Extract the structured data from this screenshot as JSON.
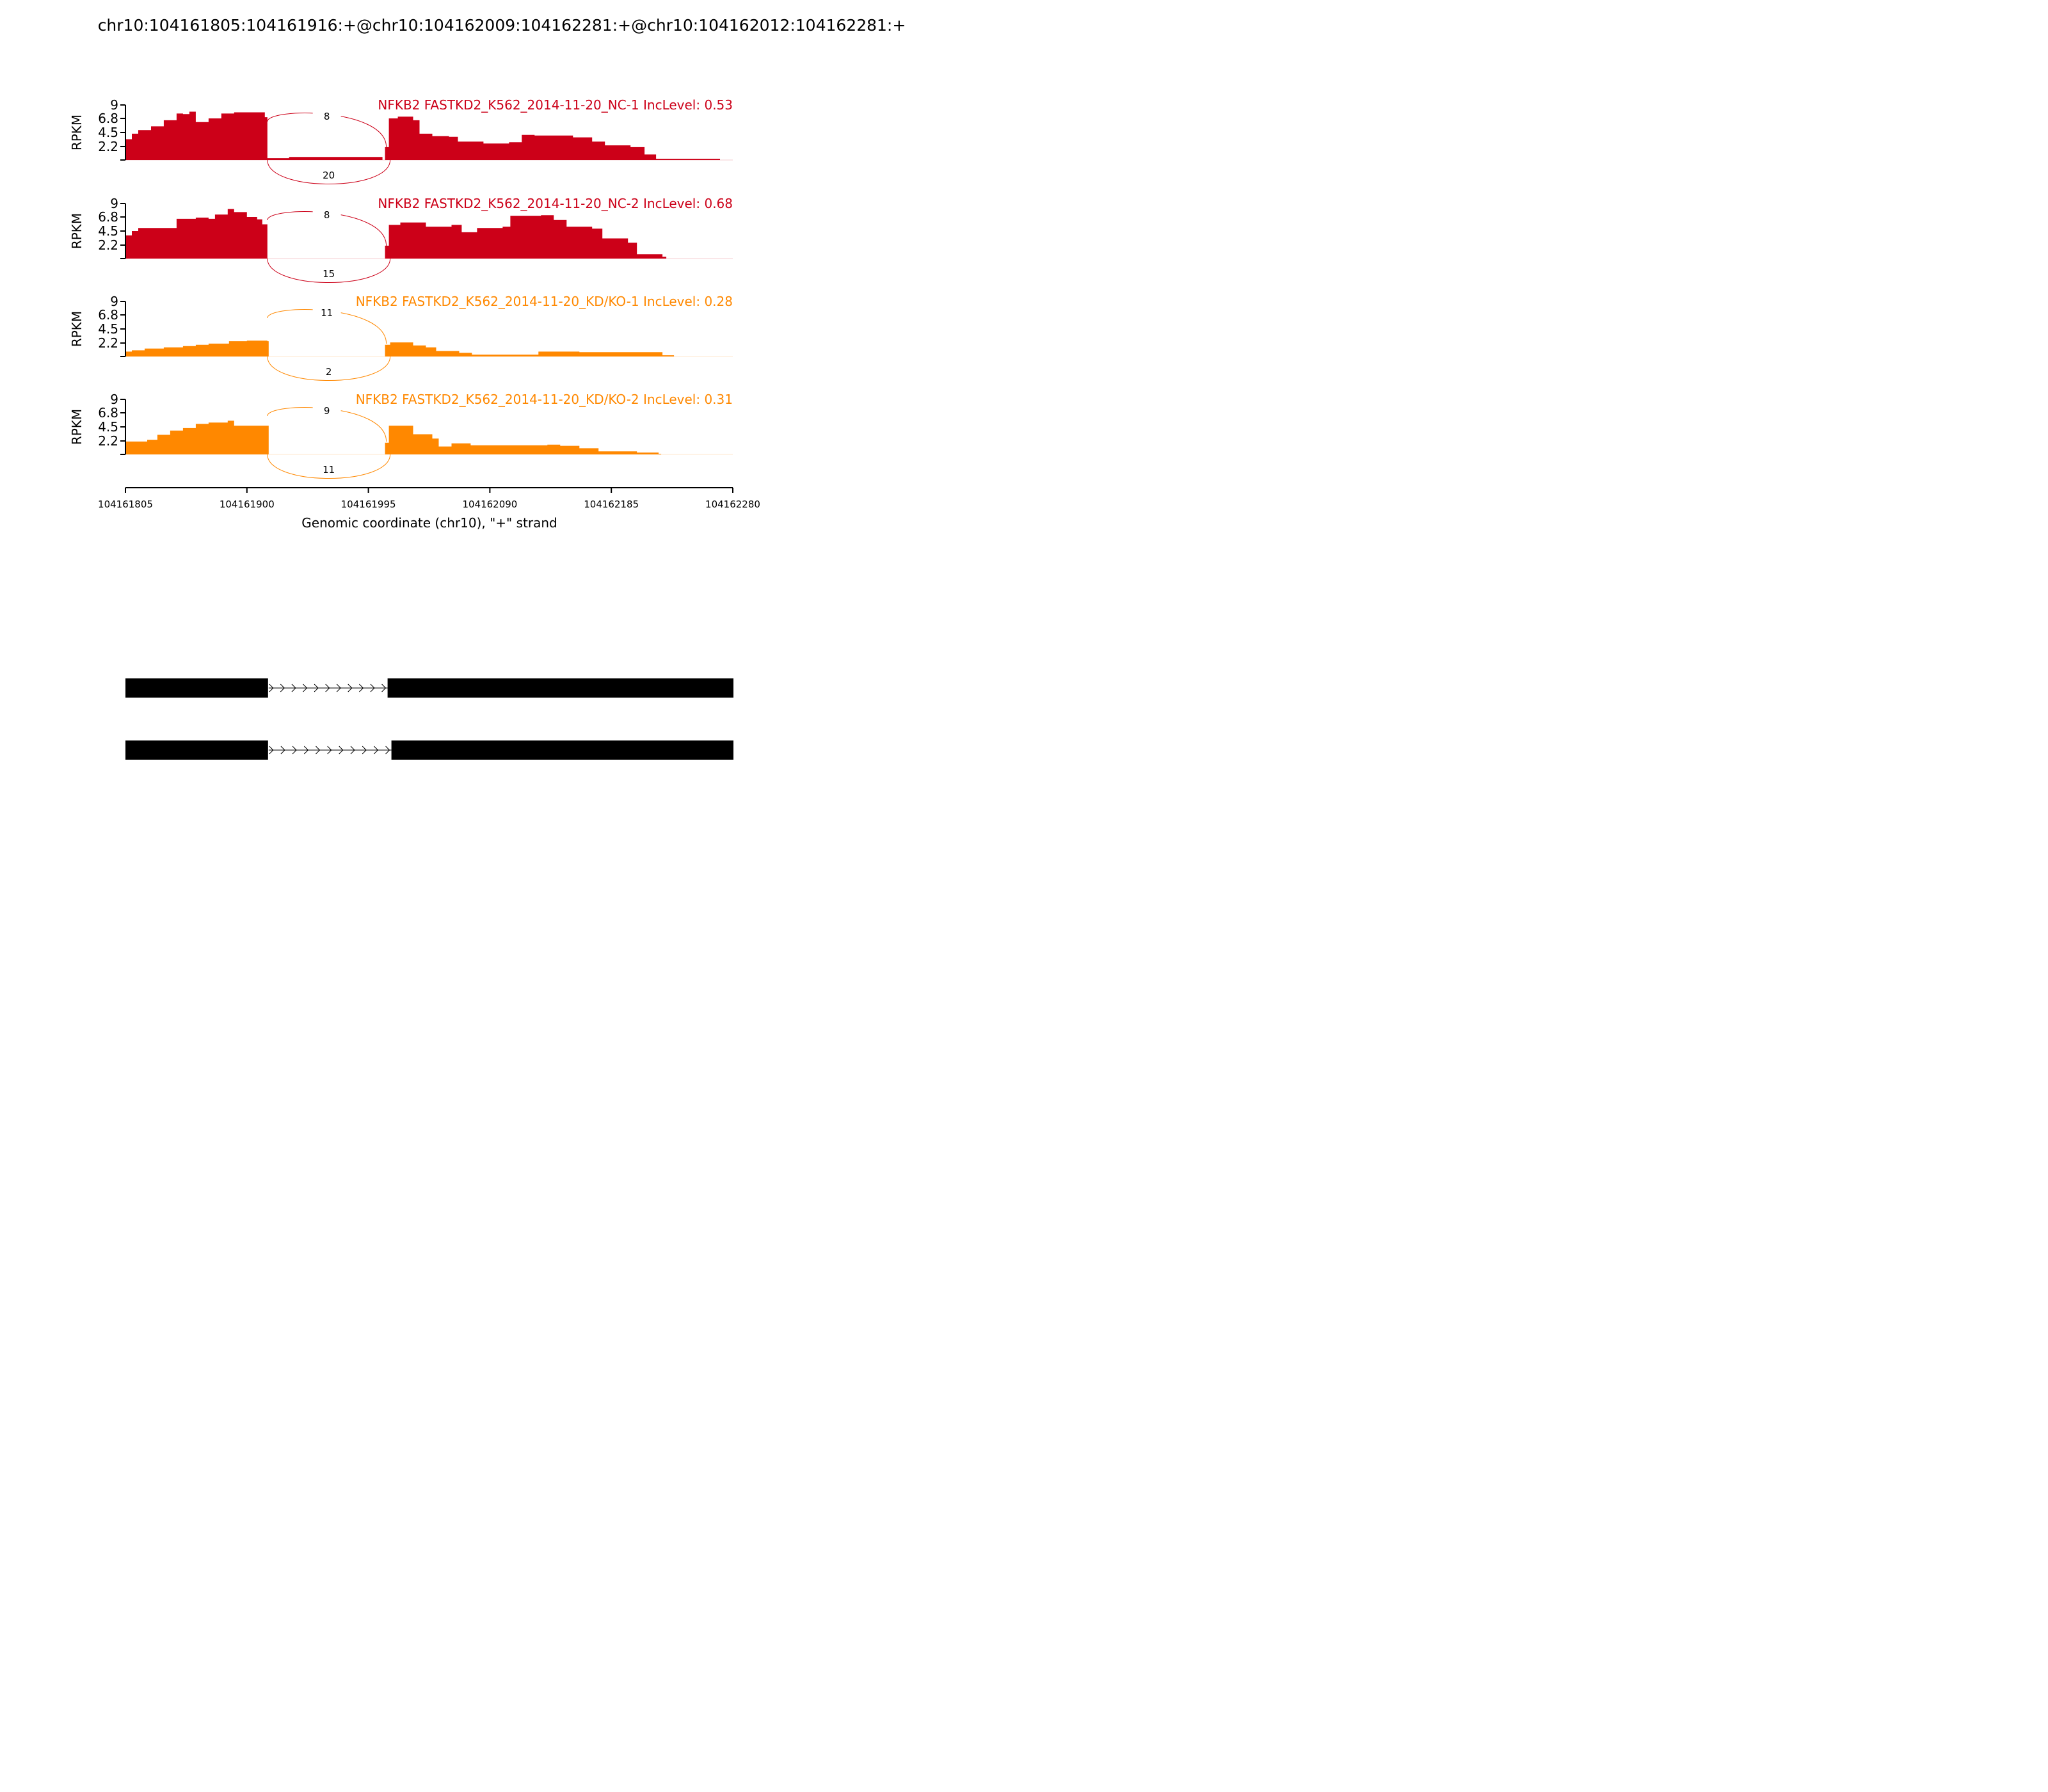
{
  "page_title": "chr10:104161805:104161916:+@chr10:104162009:104162281:+@chr10:104162012:104162281:+",
  "chart_data": {
    "type": "area",
    "title": "chr10:104161805:104161916:+@chr10:104162009:104162281:+@chr10:104162012:104162281:+",
    "xlabel": "Genomic coordinate (chr10), \"+\" strand",
    "ylabel": "RPKM",
    "xlim": [
      104161805,
      104162280
    ],
    "ylim": [
      0,
      9
    ],
    "xticks": [
      "104161805",
      "104161900",
      "104161995",
      "104162090",
      "104162185",
      "104162280"
    ],
    "yticks": [
      "2.2",
      "4.5",
      "6.8",
      "9"
    ],
    "colors": {
      "NC": "#cc0018",
      "KD/KO": "#ff8800"
    },
    "series": [
      {
        "name": "NFKB2 FASTKD2_K562_2014-11-20_NC-1 IncLevel: 0.53",
        "color": "#cc0018",
        "coverage": [
          [
            104161805,
            3.4
          ],
          [
            104161810,
            4.3
          ],
          [
            104161815,
            4.9
          ],
          [
            104161825,
            5.5
          ],
          [
            104161835,
            6.5
          ],
          [
            104161845,
            7.6
          ],
          [
            104161850,
            7.5
          ],
          [
            104161855,
            7.9
          ],
          [
            104161860,
            6.2
          ],
          [
            104161870,
            6.8
          ],
          [
            104161880,
            7.6
          ],
          [
            104161890,
            7.8
          ],
          [
            104161900,
            7.8
          ],
          [
            104161914,
            7.0
          ],
          [
            104161916,
            0.3
          ],
          [
            104161933,
            0.5
          ],
          [
            104161998,
            0.5
          ],
          [
            104162006,
            0.0
          ],
          [
            104162008,
            2.1
          ],
          [
            104162011,
            6.8
          ],
          [
            104162018,
            7.1
          ],
          [
            104162030,
            6.5
          ],
          [
            104162035,
            4.3
          ],
          [
            104162045,
            3.9
          ],
          [
            104162058,
            3.8
          ],
          [
            104162065,
            3.0
          ],
          [
            104162085,
            2.7
          ],
          [
            104162105,
            2.9
          ],
          [
            104162115,
            4.1
          ],
          [
            104162125,
            4.0
          ],
          [
            104162155,
            3.7
          ],
          [
            104162170,
            3.0
          ],
          [
            104162180,
            2.4
          ],
          [
            104162200,
            2.1
          ],
          [
            104162211,
            0.9
          ],
          [
            104162220,
            0.2
          ],
          [
            104162268,
            0.2
          ],
          [
            104162270,
            0.0
          ]
        ],
        "junctions": [
          {
            "from": 104161916,
            "to": 104162009,
            "reads": "8"
          },
          {
            "from": 104161916,
            "to": 104162012,
            "reads": "20"
          }
        ]
      },
      {
        "name": "NFKB2 FASTKD2_K562_2014-11-20_NC-2 IncLevel: 0.68",
        "color": "#cc0018",
        "coverage": [
          [
            104161805,
            3.8
          ],
          [
            104161810,
            4.5
          ],
          [
            104161815,
            5.0
          ],
          [
            104161830,
            5.0
          ],
          [
            104161845,
            6.5
          ],
          [
            104161860,
            6.7
          ],
          [
            104161870,
            6.5
          ],
          [
            104161875,
            7.2
          ],
          [
            104161885,
            8.1
          ],
          [
            104161890,
            7.6
          ],
          [
            104161900,
            6.8
          ],
          [
            104161908,
            6.4
          ],
          [
            104161912,
            5.6
          ],
          [
            104161916,
            0.0
          ],
          [
            104162006,
            0.0
          ],
          [
            104162008,
            2.1
          ],
          [
            104162011,
            5.5
          ],
          [
            104162020,
            5.9
          ],
          [
            104162032,
            5.9
          ],
          [
            104162040,
            5.2
          ],
          [
            104162060,
            5.5
          ],
          [
            104162068,
            4.3
          ],
          [
            104162080,
            5.0
          ],
          [
            104162100,
            5.2
          ],
          [
            104162106,
            7.0
          ],
          [
            104162130,
            7.1
          ],
          [
            104162140,
            6.3
          ],
          [
            104162150,
            5.2
          ],
          [
            104162170,
            4.9
          ],
          [
            104162178,
            3.3
          ],
          [
            104162198,
            2.6
          ],
          [
            104162205,
            0.7
          ],
          [
            104162225,
            0.3
          ],
          [
            104162228,
            0.0
          ]
        ],
        "junctions": [
          {
            "from": 104161916,
            "to": 104162009,
            "reads": "8"
          },
          {
            "from": 104161916,
            "to": 104162012,
            "reads": "15"
          }
        ]
      },
      {
        "name": "NFKB2 FASTKD2_K562_2014-11-20_KD/KO-1 IncLevel: 0.28",
        "color": "#ff8800",
        "coverage": [
          [
            104161805,
            0.8
          ],
          [
            104161810,
            1.0
          ],
          [
            104161820,
            1.3
          ],
          [
            104161835,
            1.5
          ],
          [
            104161850,
            1.7
          ],
          [
            104161860,
            1.9
          ],
          [
            104161870,
            2.1
          ],
          [
            104161886,
            2.5
          ],
          [
            104161900,
            2.6
          ],
          [
            104161916,
            2.5
          ],
          [
            104161917,
            0.0
          ],
          [
            104162006,
            0.0
          ],
          [
            104162008,
            1.9
          ],
          [
            104162012,
            2.3
          ],
          [
            104162030,
            1.8
          ],
          [
            104162040,
            1.5
          ],
          [
            104162048,
            0.9
          ],
          [
            104162066,
            0.6
          ],
          [
            104162076,
            0.3
          ],
          [
            104162097,
            0.3
          ],
          [
            104162128,
            0.8
          ],
          [
            104162145,
            0.8
          ],
          [
            104162160,
            0.7
          ],
          [
            104162215,
            0.7
          ],
          [
            104162225,
            0.2
          ],
          [
            104162234,
            0.0
          ]
        ],
        "junctions": [
          {
            "from": 104161916,
            "to": 104162009,
            "reads": "11"
          },
          {
            "from": 104161916,
            "to": 104162012,
            "reads": "2"
          }
        ]
      },
      {
        "name": "NFKB2 FASTKD2_K562_2014-11-20_KD/KO-2 IncLevel: 0.31",
        "color": "#ff8800",
        "coverage": [
          [
            104161805,
            2.1
          ],
          [
            104161815,
            2.1
          ],
          [
            104161822,
            2.4
          ],
          [
            104161830,
            3.2
          ],
          [
            104161840,
            3.9
          ],
          [
            104161850,
            4.3
          ],
          [
            104161860,
            5.0
          ],
          [
            104161870,
            5.2
          ],
          [
            104161885,
            5.5
          ],
          [
            104161890,
            4.7
          ],
          [
            104161916,
            4.7
          ],
          [
            104161917,
            0.0
          ],
          [
            104162006,
            0.0
          ],
          [
            104162008,
            1.9
          ],
          [
            104162011,
            4.7
          ],
          [
            104162030,
            3.3
          ],
          [
            104162045,
            2.6
          ],
          [
            104162050,
            1.3
          ],
          [
            104162060,
            1.8
          ],
          [
            104162075,
            1.5
          ],
          [
            104162105,
            1.5
          ],
          [
            104162135,
            1.6
          ],
          [
            104162145,
            1.4
          ],
          [
            104162160,
            1.0
          ],
          [
            104162175,
            0.5
          ],
          [
            104162205,
            0.3
          ],
          [
            104162222,
            0.1
          ],
          [
            104162224,
            0.0
          ]
        ],
        "junctions": [
          {
            "from": 104161916,
            "to": 104162009,
            "reads": "9"
          },
          {
            "from": 104161916,
            "to": 104162012,
            "reads": "11"
          }
        ]
      }
    ],
    "isoforms": [
      {
        "exons": [
          [
            104161805,
            104161916
          ],
          [
            104162009,
            104162281
          ]
        ]
      },
      {
        "exons": [
          [
            104161805,
            104161916
          ],
          [
            104162012,
            104162281
          ]
        ]
      }
    ]
  }
}
